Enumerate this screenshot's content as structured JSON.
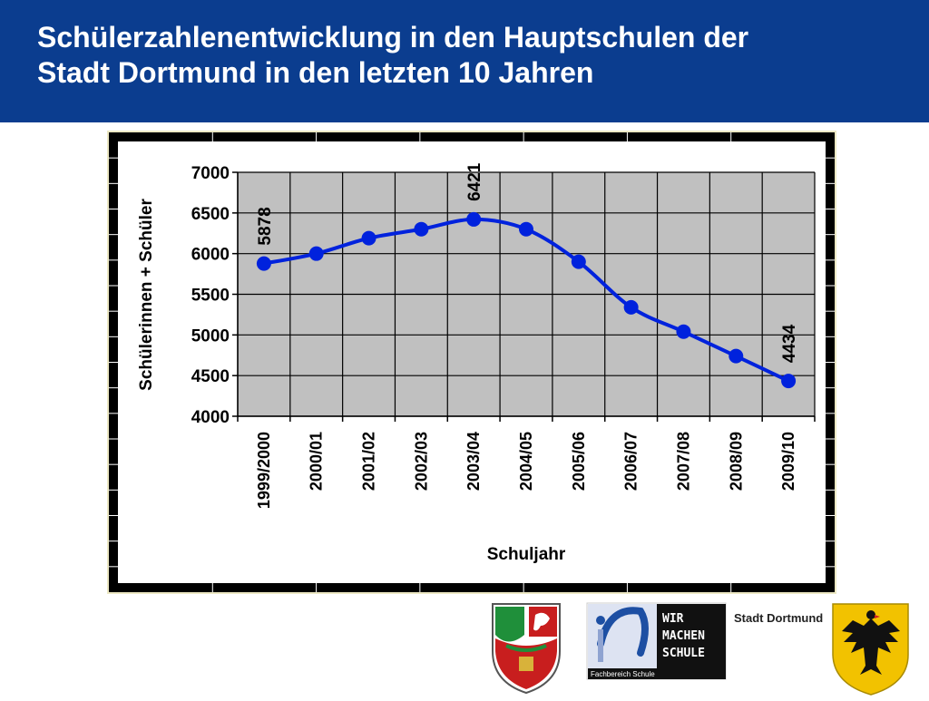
{
  "header": {
    "title_line1": "Schülerzahlenentwicklung in den Hauptschulen der",
    "title_line2": "Stadt Dortmund in den letzten 10 Jahren"
  },
  "colors": {
    "header_bg": "#0b3d8f",
    "series_line": "#0022dd",
    "plot_bg": "#c0c0c0",
    "frame": "#000000"
  },
  "chart_data": {
    "type": "line",
    "title": "",
    "xlabel": "Schuljahr",
    "ylabel": "Schülerinnen + Schüler",
    "categories": [
      "1999/2000",
      "2000/01",
      "2001/02",
      "2002/03",
      "2003/04",
      "2004/05",
      "2005/06",
      "2006/07",
      "2007/08",
      "2008/09",
      "2009/10"
    ],
    "series": [
      {
        "values": [
          5878,
          6000,
          6190,
          6300,
          6421,
          6300,
          5900,
          5340,
          5040,
          4740,
          4434
        ]
      }
    ],
    "data_labels": [
      {
        "index": 0,
        "text": "5878"
      },
      {
        "index": 4,
        "text": "6421"
      },
      {
        "index": 10,
        "text": "4434"
      }
    ],
    "yticks": [
      "4000",
      "4500",
      "5000",
      "5500",
      "6000",
      "6500",
      "7000"
    ],
    "ylim": [
      4000,
      7000
    ],
    "grid": true,
    "legend": "none"
  },
  "logos": {
    "school_logo_line1": "WIR",
    "school_logo_line2": "MACHEN",
    "school_logo_line3": "SCHULE",
    "school_logo_caption": "Fachbereich Schule",
    "city_name": "Stadt Dortmund"
  }
}
